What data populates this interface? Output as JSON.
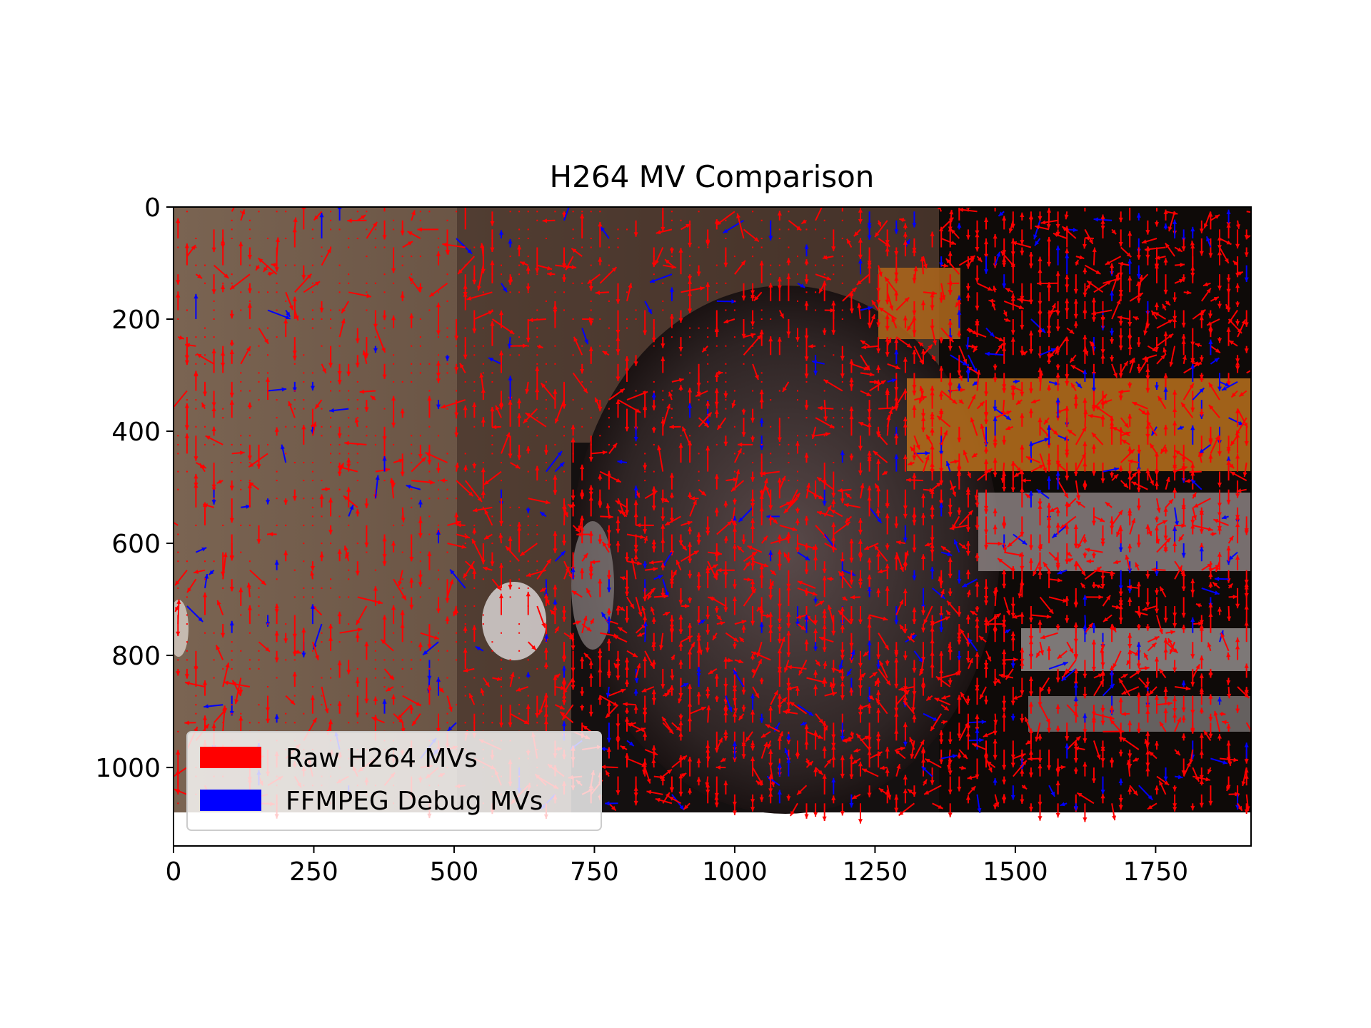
{
  "chart_data": {
    "type": "quiver",
    "title": "H264 MV Comparison",
    "xlabel": "",
    "ylabel": "",
    "xlim": [
      0,
      1920
    ],
    "ylim": [
      1140,
      0
    ],
    "xticks": [
      0,
      250,
      500,
      750,
      1000,
      1250,
      1500,
      1750
    ],
    "yticks": [
      0,
      200,
      400,
      600,
      800,
      1000
    ],
    "frame_size": [
      1920,
      1080
    ],
    "background": "video frame (dark room scene)",
    "legend_position": "lower-left",
    "series": [
      {
        "name": "Raw H264 MVs",
        "color": "#ff0000"
      },
      {
        "name": "FFMPEG Debug MVs",
        "color": "#0000ff"
      }
    ]
  },
  "colors": {
    "raw": "#ff0000",
    "ffmpeg": "#0000ff",
    "axes": "#000000"
  }
}
